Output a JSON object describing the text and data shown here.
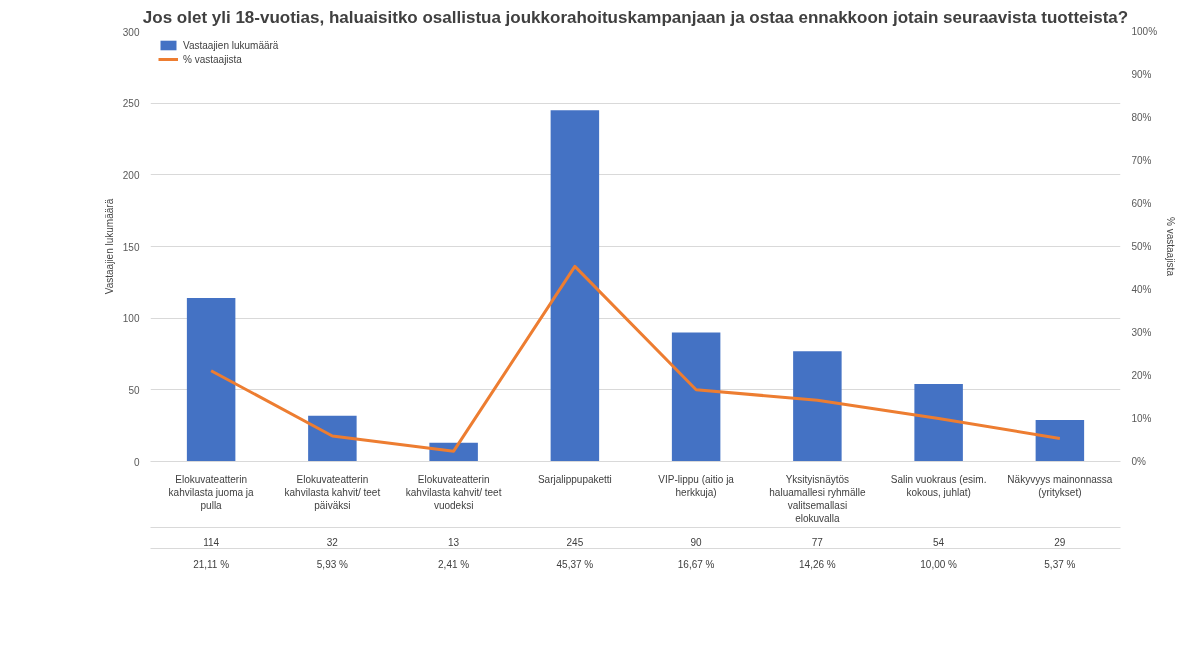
{
  "chart_data": {
    "type": "bar",
    "title": "Jos olet yli 18-vuotias, haluaisitko osallistua joukkorahoituskampanjaan ja ostaa ennakkoon jotain seuraavista tuotteista?",
    "categories": [
      "Elokuvateatterin kahvilasta juoma ja pulla",
      "Elokuvateatterin kahvilasta kahvit/ teet päiväksi",
      "Elokuvateatterin kahvilasta kahvit/ teet vuodeksi",
      "Sarjalippupaketti",
      "VIP-lippu (aitio ja herkkuja)",
      "Yksityisnäytös haluamallesi ryhmälle valitsemallasi elokuvalla",
      "Salin vuokraus (esim. kokous, juhlat)",
      "Näkyvyys mainonnassa (yritykset)"
    ],
    "series": [
      {
        "name": "Vastaajien lukumäärä",
        "color": "#4472c4",
        "values": [
          114,
          32,
          13,
          245,
          90,
          77,
          54,
          29
        ],
        "value_labels": [
          "114",
          "32",
          "13",
          "245",
          "90",
          "77",
          "54",
          "29"
        ]
      },
      {
        "name": "% vastaajista",
        "type": "line",
        "axis": "y2",
        "color": "#ed7d31",
        "values": [
          21.11,
          5.93,
          2.41,
          45.37,
          16.67,
          14.26,
          10.0,
          5.37
        ],
        "value_labels": [
          "21,11 %",
          "5,93 %",
          "2,41 %",
          "45,37 %",
          "16,67 %",
          "14,26 %",
          "10,00 %",
          "5,37 %"
        ]
      }
    ],
    "ylabel": "Vastaajien lukumäärä",
    "y2label": "% vastaajista",
    "ylim": [
      0,
      300
    ],
    "yticks": [
      0,
      50,
      100,
      150,
      200,
      250,
      300
    ],
    "y2lim": [
      0,
      100
    ],
    "y2ticks": [
      {
        "value": 0,
        "label": "0%"
      },
      {
        "value": 10,
        "label": "10%"
      },
      {
        "value": 20,
        "label": "20%"
      },
      {
        "value": 30,
        "label": "30%"
      },
      {
        "value": 40,
        "label": "40%"
      },
      {
        "value": 50,
        "label": "50%"
      },
      {
        "value": 60,
        "label": "60%"
      },
      {
        "value": 70,
        "label": "70%"
      },
      {
        "value": 80,
        "label": "80%"
      },
      {
        "value": 90,
        "label": "90%"
      },
      {
        "value": 100,
        "label": "100%"
      }
    ],
    "grid": "y",
    "legend": "top left",
    "marker": "none",
    "line_style": "solid"
  }
}
